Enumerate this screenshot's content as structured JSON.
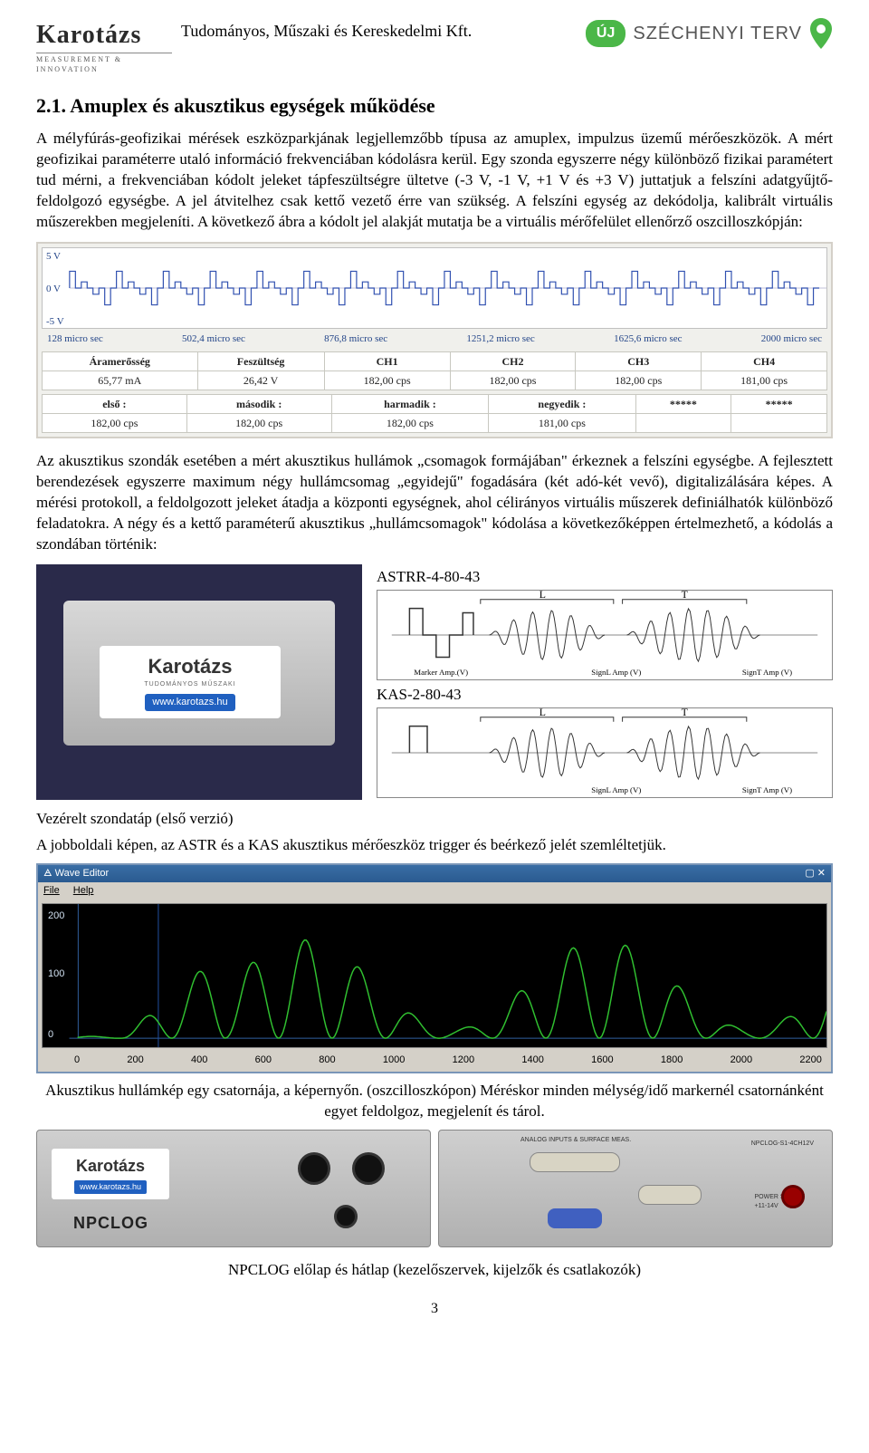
{
  "header": {
    "logo_main": "Karotázs",
    "logo_sub": "MEASUREMENT & INNOVATION",
    "company": "Tudományos, Műszaki és Kereskedelmi Kft.",
    "uj": "ÚJ",
    "szechenyi": "SZÉCHENYI TERV",
    "pin_color": "#4bb748"
  },
  "section": {
    "title": "2.1. Amuplex és akusztikus egységek működése",
    "para1": "A mélyfúrás-geofizikai mérések eszközparkjának legjellemzőbb típusa az amuplex, impulzus üzemű mérőeszközök. A mért geofizikai paraméterre utaló információ frekvenciában kódolásra kerül. Egy szonda egyszerre négy különböző fizikai paramétert tud mérni, a frekvenciában kódolt jeleket tápfeszültségre ültetve (-3 V, -1 V, +1 V és +3 V) juttatjuk a felszíni adatgyűjtő-feldolgozó egységbe. A jel átvitelhez csak kettő vezető érre van szükség. A felszíni egység az dekódolja, kalibrált virtuális műszerekben megjeleníti. A következő ábra a kódolt jel alakját mutatja be a virtuális mérőfelület ellenőrző oszcilloszkópján:",
    "para2": "Az akusztikus szondák esetében a mért akusztikus hullámok „csomagok formájában\" érkeznek a felszíni egységbe. A fejlesztett berendezések egyszerre maximum négy hullámcsomag „egyidejű\" fogadására (két adó-két vevő), digitalizálására képes. A mérési protokoll, a feldolgozott jeleket átadja a központi egységnek, ahol célirányos virtuális műszerek definiálhatók különböző feladatokra. A négy és a kettő paraméterű akusztikus „hullámcsomagok\" kódolása a következőképpen értelmezhető, a kódolás a szondában történik:"
  },
  "osc": {
    "y_labels": [
      "5 V",
      "0 V",
      "-5 V"
    ],
    "x_ticks": [
      "128 micro sec",
      "502,4 micro sec",
      "876,8 micro sec",
      "1251,2 micro sec",
      "1625,6 micro sec",
      "2000 micro sec"
    ],
    "table1_headers": [
      "Áramerősség",
      "Feszültség",
      "CH1",
      "CH2",
      "CH3",
      "CH4"
    ],
    "table1_values": [
      "65,77 mA",
      "26,42 V",
      "182,00 cps",
      "182,00 cps",
      "182,00 cps",
      "181,00 cps"
    ],
    "table2_headers": [
      "első :",
      "második :",
      "harmadik :",
      "negyedik :",
      "*****",
      "*****"
    ],
    "table2_values": [
      "182,00 cps",
      "182,00 cps",
      "182,00 cps",
      "181,00 cps",
      "",
      ""
    ],
    "signal_color": "#3050b0",
    "border_color": "#d4d0c8"
  },
  "device": {
    "astrr_label": "ASTRR-4-80-43",
    "kas_label": "KAS-2-80-43",
    "sticker_main": "Karotázs",
    "sticker_sub": "TUDOMÁNYOS MŰSZAKI",
    "sticker_url": "www.karotazs.hu",
    "sig_L": "L",
    "sig_T": "T",
    "marker_label": "Marker\nAmp.(V)",
    "signl_label": "SignL\nAmp (V)",
    "signt_label": "SignT\nAmp (V)"
  },
  "captions": {
    "vezerelt": "Vezérelt szondatáp (első verzió)",
    "jobboldali": "A jobboldali képen, az ASTR és a KAS akusztikus mérőeszköz trigger és beérkező jelét szemléltetjük.",
    "akusztikus": "Akusztikus hullámkép egy csatornája, a képernyőn. (oszcilloszkópon) Méréskor minden mélység/idő markernél csatornánként egyet feldolgoz, megjelenít és tárol.",
    "npclog": "NPCLOG előlap és hátlap (kezelőszervek, kijelzők és csatlakozók)"
  },
  "wave": {
    "title": "Wave Editor",
    "menu": [
      "File",
      "Help"
    ],
    "y_ticks": [
      "200",
      "100",
      "0"
    ],
    "x_ticks": [
      "0",
      "200",
      "400",
      "600",
      "800",
      "1000",
      "1200",
      "1400",
      "1600",
      "1800",
      "2000",
      "2200"
    ],
    "wave_color": "#30c030",
    "bg_color": "#000000"
  },
  "npclog": {
    "brand": "Karotázs",
    "url": "www.karotazs.hu",
    "label": "NPCLOG",
    "back_title": "ANALOG INPUTS & SURFACE MEAS.",
    "model": "NPCLOG-S1-4CH12V",
    "ps": "POWER SUPPLY\n+11-14V"
  },
  "page_number": "3"
}
